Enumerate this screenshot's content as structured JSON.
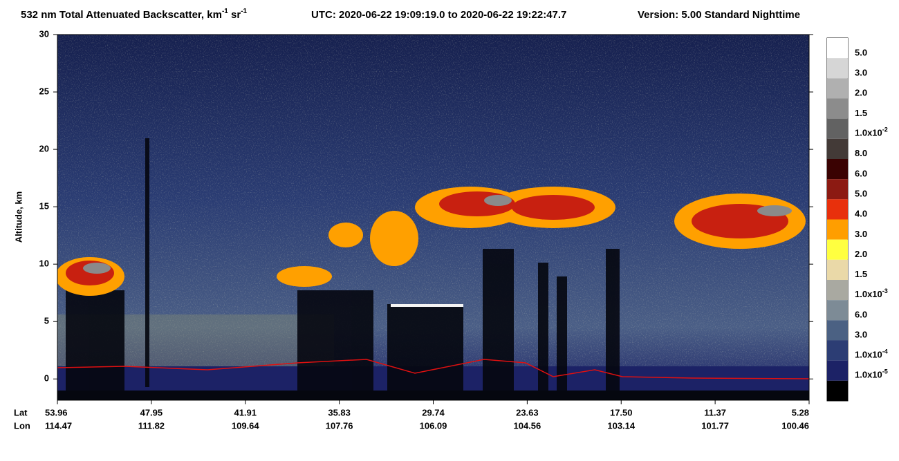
{
  "chart_data": {
    "type": "heatmap",
    "title": {
      "text": "532 nm Total Attenuated Backscatter, km",
      "unit1_exp": "-1",
      "unit2": " sr",
      "unit2_exp": "-1",
      "utc": "UTC:  2020-06-22 19:09:19.0  to  2020-06-22 19:22:47.7",
      "version": "Version: 5.00  Standard  Nighttime"
    },
    "ylabel": "Altitude, km",
    "ylim": [
      -1.85,
      30
    ],
    "yticks": [
      0,
      5,
      10,
      15,
      20,
      25,
      30
    ],
    "x_row_labels": [
      "Lat",
      "Lon"
    ],
    "lat": [
      "53.96",
      "47.95",
      "41.91",
      "35.83",
      "29.74",
      "23.63",
      "17.50",
      "11.37",
      "5.28"
    ],
    "lon": [
      "114.47",
      "111.82",
      "109.64",
      "107.76",
      "106.09",
      "104.56",
      "103.14",
      "101.77",
      "100.46"
    ],
    "colorbar": {
      "colors": [
        "#ffffff",
        "#d6d6d6",
        "#b0b0b0",
        "#8c8c8c",
        "#626262",
        "#433a37",
        "#3a0202",
        "#8c1a12",
        "#e8300c",
        "#ff9e00",
        "#ffff40",
        "#ead9a8",
        "#a9a9a1",
        "#7d8b96",
        "#4b6183",
        "#2c3d74",
        "#1c2266",
        "#000000"
      ],
      "labels": [
        "5.0",
        "3.0",
        "2.0",
        "1.5",
        {
          "label": "1.0x10",
          "exponent": "-2"
        },
        "8.0",
        "6.0",
        "5.0",
        "4.0",
        "3.0",
        "2.0",
        "1.5",
        {
          "label": "1.0x10",
          "exponent": "-3"
        },
        "6.0",
        "3.0",
        {
          "label": "1.0x10",
          "exponent": "-4"
        },
        {
          "label": "1.0x10",
          "exponent": "-5"
        }
      ]
    }
  }
}
